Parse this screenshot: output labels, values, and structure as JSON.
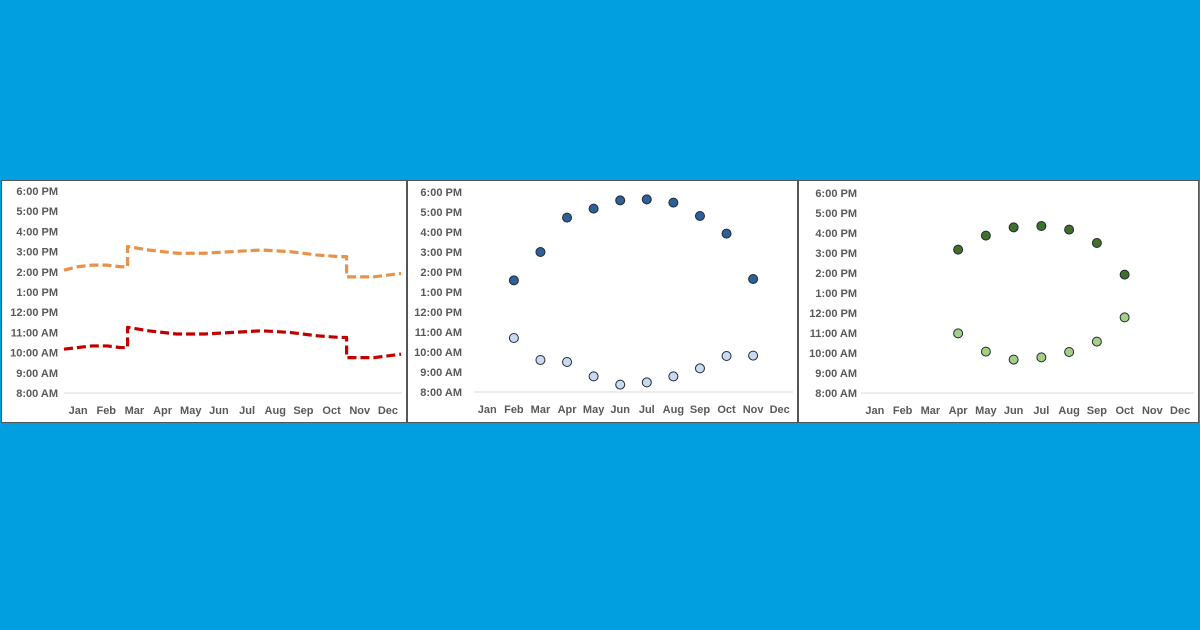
{
  "colors": {
    "page_background": "#019fe0",
    "panel_background": "#ffffff",
    "panel_border": "#555555",
    "tick_text": "#595959",
    "axis_line": "#d9d9d9"
  },
  "chart_data": [
    {
      "type": "line",
      "categories": [
        "Jan",
        "Feb",
        "Mar",
        "Apr",
        "May",
        "Jun",
        "Jul",
        "Aug",
        "Sep",
        "Oct",
        "Nov",
        "Dec"
      ],
      "yticks": [
        "8:00 AM",
        "9:00 AM",
        "10:00 AM",
        "11:00 AM",
        "12:00 PM",
        "1:00 PM",
        "2:00 PM",
        "3:00 PM",
        "4:00 PM",
        "5:00 PM",
        "6:00 PM"
      ],
      "ylim": [
        8,
        18
      ],
      "grid": false,
      "series": [
        {
          "color": "#e8914a",
          "style": "dashed",
          "x": [
            "Jan 1",
            "Jan 16",
            "Feb 1",
            "Feb 16",
            "Mar 1",
            "Mar 9",
            "Mar 9",
            "Apr 1",
            "May 1",
            "Jun 1",
            "Jul 1",
            "Aug 1",
            "Sep 1",
            "Oct 1",
            "Oct 25",
            "Nov 2",
            "Nov 2",
            "Dec 1",
            "Dec 31"
          ],
          "values": [
            14.08,
            14.25,
            14.33,
            14.33,
            14.25,
            14.25,
            15.25,
            15.08,
            14.92,
            14.92,
            15.0,
            15.08,
            15.0,
            14.83,
            14.75,
            14.75,
            13.75,
            13.75,
            13.92
          ]
        },
        {
          "color": "#c00000",
          "style": "dashed",
          "x": [
            "Jan 1",
            "Jan 16",
            "Feb 1",
            "Feb 16",
            "Mar 1",
            "Mar 9",
            "Mar 9",
            "Apr 1",
            "May 1",
            "Jun 1",
            "Jul 1",
            "Aug 1",
            "Sep 1",
            "Oct 1",
            "Oct 25",
            "Nov 2",
            "Nov 2",
            "Dec 1",
            "Dec 31"
          ],
          "values": [
            10.17,
            10.25,
            10.33,
            10.33,
            10.25,
            10.25,
            11.25,
            11.08,
            10.92,
            10.92,
            11.0,
            11.08,
            11.0,
            10.83,
            10.75,
            10.75,
            9.75,
            9.75,
            9.92
          ]
        }
      ]
    },
    {
      "type": "scatter",
      "categories": [
        "Jan",
        "Feb",
        "Mar",
        "Apr",
        "May",
        "Jun",
        "Jul",
        "Aug",
        "Sep",
        "Oct",
        "Nov",
        "Dec"
      ],
      "yticks": [
        "8:00 AM",
        "9:00 AM",
        "10:00 AM",
        "11:00 AM",
        "12:00 PM",
        "1:00 PM",
        "2:00 PM",
        "3:00 PM",
        "4:00 PM",
        "5:00 PM",
        "6:00 PM"
      ],
      "ylim": [
        8,
        18
      ],
      "grid": false,
      "series": [
        {
          "color": "#2e5f96",
          "x": [
            "Feb",
            "Mar",
            "Apr",
            "May",
            "Jun",
            "Jul",
            "Aug",
            "Sep",
            "Oct",
            "Nov"
          ],
          "values": [
            13.58,
            15.0,
            16.72,
            17.17,
            17.58,
            17.63,
            17.47,
            16.8,
            15.92,
            13.65
          ]
        },
        {
          "color": "#c9daf0",
          "x": [
            "Feb",
            "Mar",
            "Apr",
            "May",
            "Jun",
            "Jul",
            "Aug",
            "Sep",
            "Oct",
            "Nov"
          ],
          "values": [
            10.7,
            9.6,
            9.5,
            8.78,
            8.37,
            8.48,
            8.78,
            9.18,
            9.8,
            9.82
          ]
        }
      ]
    },
    {
      "type": "scatter",
      "categories": [
        "Jan",
        "Feb",
        "Mar",
        "Apr",
        "May",
        "Jun",
        "Jul",
        "Aug",
        "Sep",
        "Oct",
        "Nov",
        "Dec"
      ],
      "yticks": [
        "8:00 AM",
        "9:00 AM",
        "10:00 AM",
        "11:00 AM",
        "12:00 PM",
        "1:00 PM",
        "2:00 PM",
        "3:00 PM",
        "4:00 PM",
        "5:00 PM",
        "6:00 PM"
      ],
      "ylim": [
        8,
        18
      ],
      "grid": false,
      "series": [
        {
          "color": "#3f6f2a",
          "x": [
            "Apr",
            "May",
            "Jun",
            "Jul",
            "Aug",
            "Sep",
            "Oct"
          ],
          "values": [
            15.17,
            15.87,
            16.28,
            16.35,
            16.17,
            15.5,
            13.92
          ]
        },
        {
          "color": "#a6cf85",
          "x": [
            "Apr",
            "May",
            "Jun",
            "Jul",
            "Aug",
            "Sep",
            "Oct"
          ],
          "values": [
            10.98,
            10.07,
            9.67,
            9.78,
            10.05,
            10.57,
            11.78
          ]
        }
      ]
    }
  ]
}
